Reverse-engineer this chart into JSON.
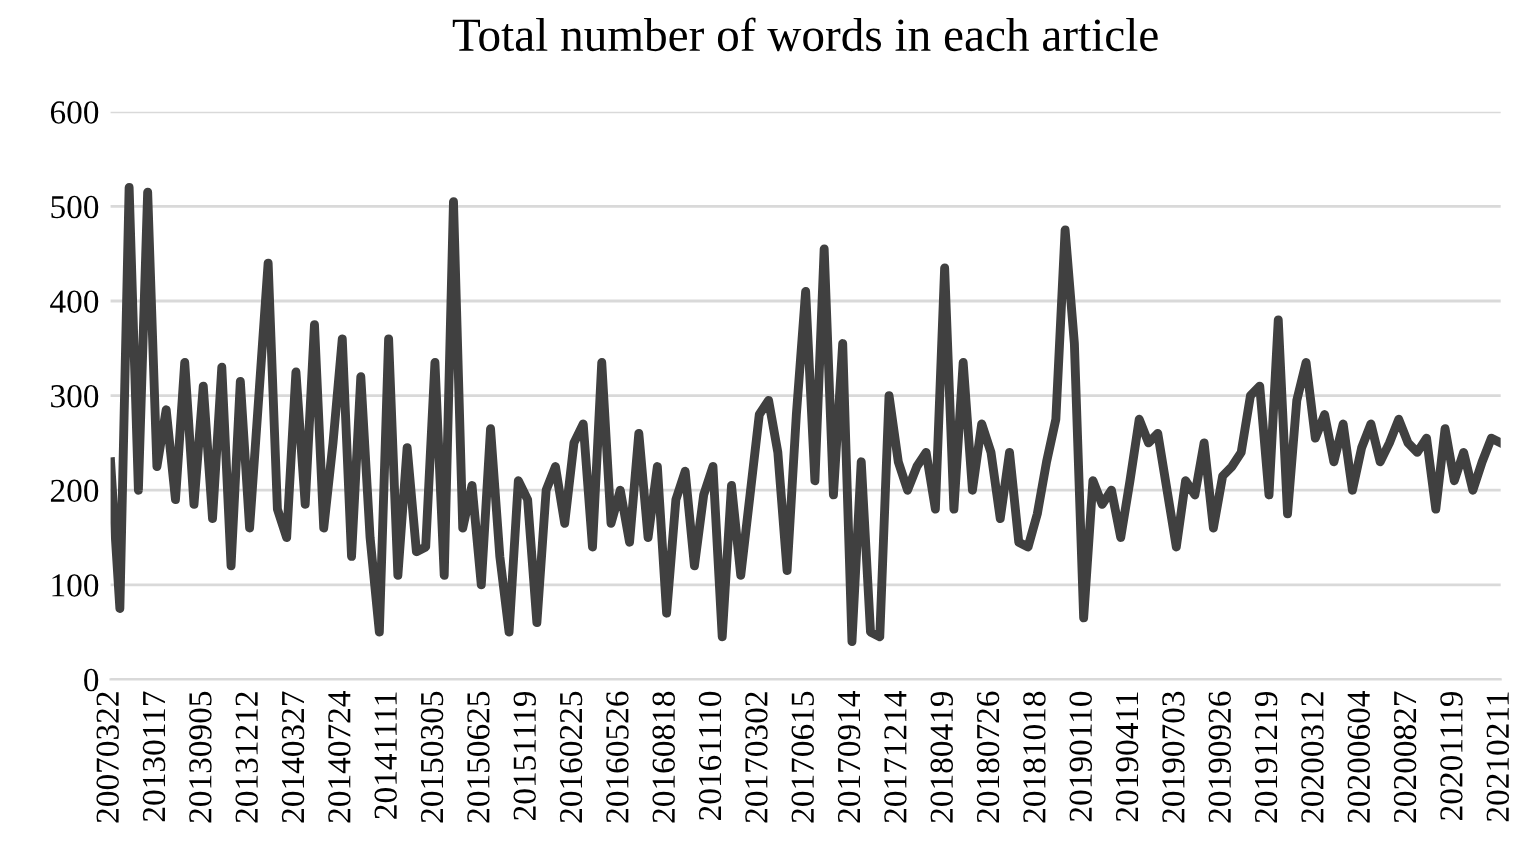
{
  "chart_data": {
    "type": "line",
    "title": "Total number of words in each article",
    "categories": [
      "20070322",
      null,
      null,
      null,
      null,
      "20130117",
      null,
      null,
      null,
      null,
      "20130905",
      null,
      null,
      null,
      null,
      "20131212",
      null,
      null,
      null,
      null,
      "20140327",
      null,
      null,
      null,
      null,
      "20140724",
      null,
      null,
      null,
      null,
      "20141111",
      null,
      null,
      null,
      null,
      "20150305",
      null,
      null,
      null,
      null,
      "20150625",
      null,
      null,
      null,
      null,
      "20151119",
      null,
      null,
      null,
      null,
      "20160225",
      null,
      null,
      null,
      null,
      "20160526",
      null,
      null,
      null,
      null,
      "20160818",
      null,
      null,
      null,
      null,
      "20161110",
      null,
      null,
      null,
      null,
      "20170302",
      null,
      null,
      null,
      null,
      "20170615",
      null,
      null,
      null,
      null,
      "20170914",
      null,
      null,
      null,
      null,
      "20171214",
      null,
      null,
      null,
      null,
      "20180419",
      null,
      null,
      null,
      null,
      "20180726",
      null,
      null,
      null,
      null,
      "20181018",
      null,
      null,
      null,
      null,
      "20190110",
      null,
      null,
      null,
      null,
      "20190411",
      null,
      null,
      null,
      null,
      "20190703",
      null,
      null,
      null,
      null,
      "20190926",
      null,
      null,
      null,
      null,
      "20191219",
      null,
      null,
      null,
      null,
      "20200312",
      null,
      null,
      null,
      null,
      "20200604",
      null,
      null,
      null,
      null,
      "20200827",
      null,
      null,
      null,
      null,
      "20201119",
      null,
      null,
      null,
      null,
      "20210211"
    ],
    "series": [
      {
        "color": "#404040",
        "values": [
          230,
          75,
          520,
          200,
          515,
          225,
          285,
          190,
          335,
          185,
          310,
          170,
          330,
          120,
          315,
          160,
          300,
          440,
          180,
          150,
          325,
          185,
          375,
          160,
          250,
          360,
          130,
          320,
          150,
          50,
          360,
          110,
          245,
          135,
          140,
          335,
          110,
          505,
          160,
          205,
          100,
          265,
          130,
          50,
          210,
          190,
          60,
          200,
          225,
          165,
          250,
          270,
          140,
          335,
          165,
          200,
          145,
          260,
          150,
          225,
          70,
          190,
          220,
          120,
          195,
          225,
          45,
          205,
          110,
          195,
          280,
          295,
          240,
          115,
          280,
          410,
          210,
          455,
          195,
          355,
          40,
          230,
          50,
          45,
          300,
          230,
          200,
          225,
          240,
          180,
          435,
          180,
          335,
          200,
          270,
          240,
          170,
          240,
          145,
          140,
          175,
          230,
          275,
          475,
          355,
          65,
          210,
          185,
          200,
          150,
          210,
          275,
          250,
          260,
          200,
          140,
          210,
          195,
          250,
          160,
          215,
          225,
          240,
          300,
          310,
          195,
          380,
          175,
          295,
          335,
          255,
          280,
          230,
          270,
          200,
          245,
          270,
          230,
          250,
          275,
          250,
          240,
          255,
          180,
          265,
          210,
          240,
          200,
          230,
          255,
          250
        ]
      }
    ],
    "ylim": [
      0,
      600
    ],
    "yticks": [
      0,
      100,
      200,
      300,
      400,
      500,
      600
    ],
    "grid": "y",
    "legend": false,
    "marker": "none",
    "line_style": "solid"
  }
}
